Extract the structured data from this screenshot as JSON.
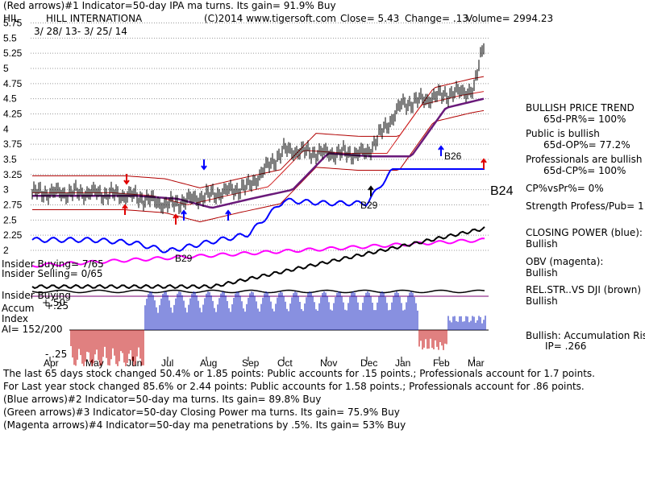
{
  "header": {
    "line1": "(Red arrows)#1 Indicator=50-day IPA ma turns. Its gain= 91.9% Buy",
    "symbol": "HIL",
    "company": "HILL INTERNATIONA",
    "copyright": "(C)2014 www.tigersoft.com",
    "close": "Close=  5.43",
    "change": "Change= .13",
    "volume": "Volume= 2994.23",
    "date_range": "3/ 28/ 13-  3/ 25/ 14"
  },
  "chart_data": {
    "type": "line",
    "title": "HILL INTERNATIONA",
    "y_ticks": [
      "5.75",
      "5.5",
      "5.25",
      "5",
      "4.75",
      "4.5",
      "4.25",
      "4",
      "3.75",
      "3.5",
      "3.25",
      "3",
      "2.75",
      "2.5",
      "2.25",
      "2"
    ],
    "ylim": [
      2,
      5.75
    ],
    "x_ticks": [
      "Apr",
      "May",
      "Jun",
      "Jul",
      "Aug",
      "Sep",
      "Oct",
      "Nov",
      "Dec",
      "Jan",
      "Feb",
      "Mar"
    ],
    "series": [
      {
        "name": "Price",
        "x": [
          "Apr",
          "May",
          "Jun",
          "Jul",
          "Aug",
          "Sep",
          "Oct",
          "Nov",
          "Dec",
          "Jan",
          "Feb",
          "Mar",
          "Mar 25"
        ],
        "values": [
          2.95,
          2.95,
          2.9,
          2.75,
          2.9,
          3.05,
          3.65,
          3.6,
          3.6,
          4.4,
          4.55,
          4.65,
          5.43
        ]
      },
      {
        "name": "CLOSING POWER (blue)",
        "color": "#0000ff"
      },
      {
        "name": "OBV (magenta)",
        "color": "#ff00ff"
      },
      {
        "name": "REL.STR..VS DJI (brown)",
        "color": "#8b4513"
      }
    ],
    "annotations": [
      "B29",
      "B29",
      "B26",
      "B24",
      "B29"
    ],
    "left_labels": {
      "insider_buying": "Insider Buying= 7/65",
      "insider_selling": "Insider Selling= 0/65",
      "insider_buying2": "Insider Buying",
      "accum": "Accum",
      "index": "Index",
      "ai": "AI= 152/200",
      "p50": "+.50",
      "p25": "+.25",
      "m25": "- .25"
    }
  },
  "right_panel": {
    "trend_title": "BULLISH PRICE TREND",
    "pr": "65d-PR%= 100%",
    "public": "Public is bullish",
    "op": "65d-OP%= 77.2%",
    "professionals": "Professionals are bullish",
    "cp": "65d-CP%= 100%",
    "cpvspr": "CP%vsPr%=  0%",
    "strength": "Strength Profess/Pub= 11",
    "closing_power": "CLOSING POWER (blue):",
    "closing_power_val": "Bullish",
    "obv": "OBV (magenta):",
    "obv_val": "Bullish",
    "relstr": "REL.STR..VS DJI (brown)",
    "relstr_val": "Bullish",
    "accum": "Bullish: Accumulation Risi",
    "ip": "IP=  .266"
  },
  "footer": {
    "line1": "The last 65 days stock changed  50.4% or  1.85 points:  Public accounts for  .15 points.;  Professionals account for  1.7 points.",
    "line2": "For Last year stock changed  85.6% or  2.44 points:  Public accounts for  1.58 points.;  Professionals account for  .86 points.",
    "line3": "(Blue arrows)#2 Indicator=50-day ma turns. Its gain= 89.8% Buy",
    "line4": "(Green arrows)#3 Indicator=50-day Closing Power ma turns. Its gain= 75.9% Buy",
    "line5": "(Magenta arrows)#4 Indicator=50-day ma penetrations by .5%. Its gain= 53% Buy"
  }
}
